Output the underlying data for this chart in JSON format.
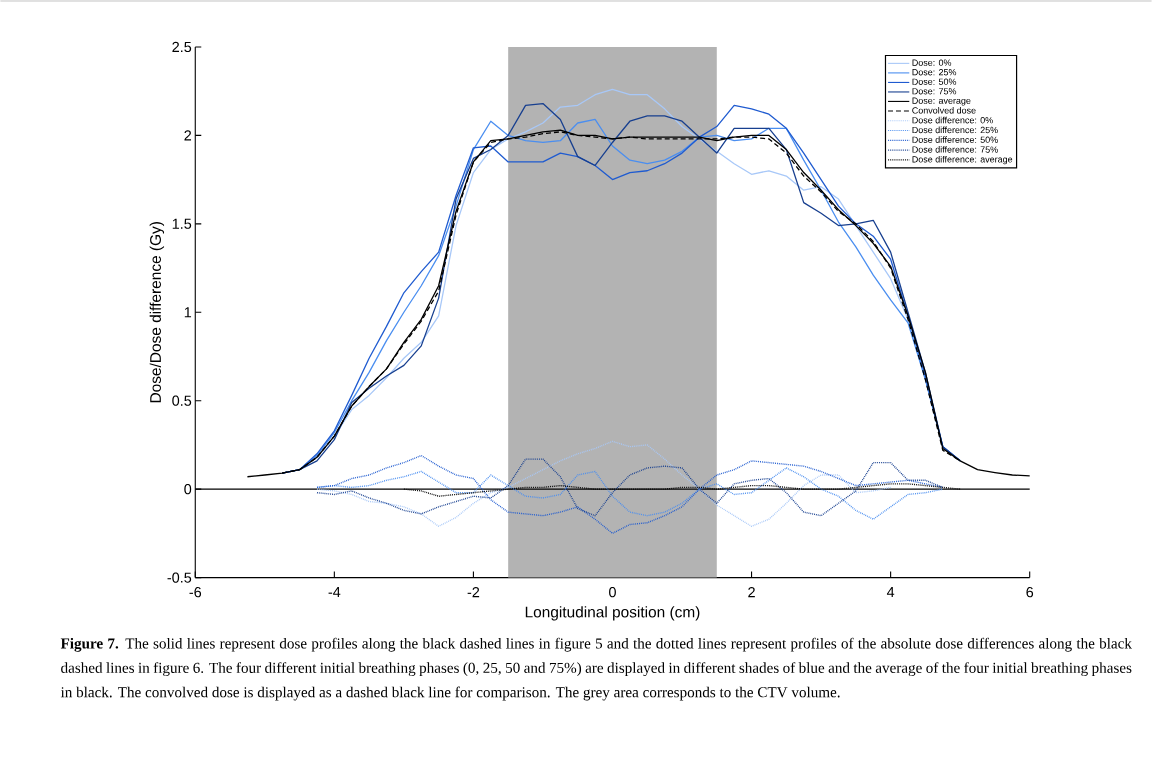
{
  "chart_data": {
    "type": "line",
    "xlabel": "Longitudinal position (cm)",
    "ylabel": "Dose/Dose difference (Gy)",
    "annotations": [
      "**Figure 7.** The solid lines represent dose profiles along the black dashed lines in figure 5 and the dotted lines represent profiles of the absolute dose differences along the black dashed lines in figure 6. The four different initial breathing phases (0, 25, 50 and 75%) are displayed in different shades of blue and the average of the four initial breathing phases in black. The convolved dose is displayed as a dashed black line for comparison. The grey area corresponds to the CTV volume."
    ],
    "x": [
      -5.25,
      -5,
      -4.75,
      -4.5,
      -4.25,
      -4,
      -3.75,
      -3.5,
      -3.25,
      -3,
      -2.75,
      -2.5,
      -2.25,
      -2,
      -1.75,
      -1.5,
      -1.25,
      -1,
      -0.75,
      -0.5,
      -0.25,
      0,
      0.25,
      0.5,
      0.75,
      1,
      1.25,
      1.5,
      1.75,
      2,
      2.25,
      2.5,
      2.75,
      3,
      3.25,
      3.5,
      3.75,
      4,
      4.25,
      4.5,
      4.75,
      5,
      5.25,
      5.5,
      5.75,
      6
    ],
    "xlim": [
      -6,
      6
    ],
    "xticks": [
      -6,
      -4,
      -2,
      0,
      2,
      4,
      6
    ],
    "ylim": [
      -0.5,
      2.5
    ],
    "yticks": [
      -0.5,
      0,
      0.5,
      1,
      1.5,
      2,
      2.5
    ],
    "grid": false,
    "legend": "top right",
    "marker": "none",
    "bands": [
      {
        "axis": "x",
        "from": -1.5,
        "to": 1.5,
        "color": "#b3b3b3"
      }
    ],
    "ref_lines": [
      {
        "axis": "y",
        "value": 0,
        "color": "#000000"
      }
    ],
    "series": [
      {
        "name": "Dose: 0%",
        "color": "#a8c8f8",
        "line_style": "solid",
        "values": [
          null,
          null,
          0.09,
          0.11,
          0.18,
          0.3,
          0.45,
          0.53,
          0.63,
          0.74,
          0.83,
          0.98,
          1.49,
          1.79,
          1.92,
          1.98,
          2.02,
          2.07,
          2.16,
          2.17,
          2.23,
          2.26,
          2.23,
          2.23,
          2.15,
          2.05,
          1.98,
          1.91,
          1.84,
          1.78,
          1.8,
          1.77,
          1.69,
          1.71,
          1.64,
          1.49,
          1.34,
          1.19,
          0.96,
          0.62,
          0.24,
          0.16,
          null,
          null,
          null,
          null
        ]
      },
      {
        "name": "Dose: 25%",
        "color": "#4a8ef0",
        "line_style": "solid",
        "values": [
          null,
          null,
          0.09,
          0.11,
          0.19,
          0.32,
          0.5,
          0.66,
          0.84,
          1.0,
          1.15,
          1.32,
          1.6,
          1.92,
          2.08,
          2.0,
          1.97,
          1.96,
          1.97,
          2.07,
          2.09,
          1.94,
          1.86,
          1.84,
          1.86,
          1.91,
          1.99,
          2.0,
          1.97,
          1.98,
          2.04,
          2.04,
          1.86,
          1.69,
          1.51,
          1.37,
          1.21,
          1.07,
          0.94,
          0.62,
          0.24,
          0.16,
          null,
          null,
          null,
          null
        ]
      },
      {
        "name": "Dose: 50%",
        "color": "#1f5bd0",
        "line_style": "solid",
        "values": [
          null,
          null,
          0.09,
          0.11,
          0.2,
          0.33,
          0.53,
          0.74,
          0.92,
          1.11,
          1.23,
          1.34,
          1.66,
          1.93,
          1.94,
          1.85,
          1.85,
          1.85,
          1.9,
          1.88,
          1.83,
          1.75,
          1.79,
          1.8,
          1.84,
          1.9,
          1.99,
          2.05,
          2.17,
          2.15,
          2.12,
          2.04,
          1.9,
          1.75,
          1.6,
          1.5,
          1.43,
          1.3,
          0.98,
          0.64,
          0.24,
          0.16,
          null,
          null,
          null,
          null
        ]
      },
      {
        "name": "Dose: 75%",
        "color": "#173f8f",
        "line_style": "solid",
        "values": [
          null,
          null,
          0.09,
          0.11,
          0.16,
          0.28,
          0.49,
          0.57,
          0.64,
          0.7,
          0.81,
          1.08,
          1.64,
          1.87,
          1.92,
          2.0,
          2.17,
          2.18,
          2.09,
          1.88,
          1.83,
          1.96,
          2.08,
          2.11,
          2.11,
          2.08,
          1.99,
          1.9,
          2.04,
          2.04,
          2.04,
          1.92,
          1.62,
          1.56,
          1.49,
          1.5,
          1.52,
          1.34,
          1.0,
          0.66,
          0.24,
          0.16,
          null,
          null,
          null,
          null
        ]
      },
      {
        "name": "Dose: average",
        "color": "#000000",
        "line_style": "solid",
        "values": [
          0.07,
          0.08,
          0.09,
          0.11,
          0.18,
          0.3,
          0.47,
          0.58,
          0.68,
          0.83,
          0.96,
          1.15,
          1.57,
          1.85,
          1.97,
          1.98,
          2.0,
          2.02,
          2.03,
          2.0,
          2.0,
          1.98,
          1.99,
          1.99,
          1.99,
          1.99,
          1.99,
          1.97,
          1.99,
          2.0,
          2.0,
          1.92,
          1.79,
          1.69,
          1.58,
          1.49,
          1.39,
          1.26,
          0.98,
          0.66,
          0.23,
          0.16,
          0.11,
          0.094,
          0.08,
          0.075
        ]
      },
      {
        "name": "Convolved dose",
        "color": "#000000",
        "line_style": "dashed",
        "values": [
          null,
          null,
          0.09,
          0.11,
          0.18,
          0.3,
          0.47,
          0.58,
          0.68,
          0.82,
          0.95,
          1.12,
          1.55,
          1.85,
          1.96,
          1.98,
          1.99,
          2.01,
          2.02,
          2.0,
          1.99,
          1.98,
          1.99,
          1.98,
          1.98,
          1.98,
          1.98,
          1.98,
          1.99,
          1.99,
          1.98,
          1.9,
          1.77,
          1.68,
          1.57,
          1.5,
          1.4,
          1.25,
          0.96,
          0.62,
          0.22,
          0.16,
          null,
          null,
          null,
          null
        ]
      },
      {
        "name": "Dose difference: 0%",
        "color": "#a8c8f8",
        "line_style": "dotted",
        "values": [
          null,
          null,
          null,
          null,
          0,
          -0.01,
          -0.03,
          -0.07,
          -0.08,
          -0.1,
          -0.14,
          -0.21,
          -0.16,
          -0.08,
          -0.02,
          0.01,
          0.06,
          0.11,
          0.16,
          0.2,
          0.23,
          0.27,
          0.24,
          0.25,
          0.17,
          0.08,
          0,
          -0.09,
          -0.15,
          -0.21,
          -0.17,
          -0.08,
          0.02,
          0.08,
          0.08,
          -0.02,
          -0.01,
          0.01,
          null,
          null,
          null,
          null,
          null,
          null,
          null,
          null
        ]
      },
      {
        "name": "Dose difference: 25%",
        "color": "#4a8ef0",
        "line_style": "dotted",
        "values": [
          null,
          null,
          null,
          null,
          0.01,
          0.02,
          0.01,
          0.02,
          0.05,
          0.07,
          0.1,
          0.04,
          -0.02,
          -0.02,
          0.08,
          0.02,
          -0.04,
          -0.05,
          -0.03,
          0.08,
          0.1,
          -0.04,
          -0.13,
          -0.15,
          -0.13,
          -0.08,
          0,
          0.03,
          -0.03,
          -0.02,
          0.05,
          0.12,
          0.07,
          0,
          -0.04,
          -0.12,
          -0.17,
          -0.1,
          -0.03,
          -0.02,
          0,
          null,
          null,
          null,
          null,
          null
        ]
      },
      {
        "name": "Dose difference: 50%",
        "color": "#1f5bd0",
        "line_style": "dotted",
        "values": [
          null,
          null,
          null,
          null,
          0.01,
          0.02,
          0.06,
          0.08,
          0.12,
          0.15,
          0.19,
          0.13,
          0.08,
          0.06,
          -0.06,
          -0.13,
          -0.14,
          -0.15,
          -0.13,
          -0.1,
          -0.17,
          -0.25,
          -0.2,
          -0.19,
          -0.15,
          -0.1,
          0,
          0.08,
          0.11,
          0.16,
          0.15,
          0.14,
          0.13,
          0.1,
          0.06,
          0.02,
          0.03,
          0.04,
          0.05,
          0.03,
          0.01,
          null,
          null,
          null,
          null,
          null
        ]
      },
      {
        "name": "Dose difference: 75%",
        "color": "#173f8f",
        "line_style": "dotted",
        "values": [
          null,
          null,
          null,
          null,
          -0.02,
          -0.03,
          -0.01,
          -0.05,
          -0.08,
          -0.12,
          -0.14,
          -0.1,
          -0.07,
          -0.04,
          -0.05,
          0.02,
          0.17,
          0.17,
          0.07,
          -0.11,
          -0.15,
          -0.02,
          0.08,
          0.12,
          0.13,
          0.12,
          0,
          -0.08,
          0.03,
          0.05,
          0.06,
          -0.02,
          -0.13,
          -0.15,
          -0.08,
          -0.01,
          0.15,
          0.15,
          0.05,
          0.05,
          0.01,
          null,
          null,
          null,
          null,
          null
        ]
      },
      {
        "name": "Dose difference: average",
        "color": "#000000",
        "line_style": "dotted",
        "values": [
          null,
          null,
          null,
          null,
          null,
          null,
          null,
          null,
          null,
          0,
          -0.01,
          -0.04,
          -0.03,
          -0.02,
          -0.01,
          0,
          0.01,
          0.01,
          0.02,
          0.01,
          0,
          0,
          0,
          0,
          0,
          0.01,
          0.01,
          0,
          0.01,
          0.02,
          0.02,
          0.01,
          0,
          0,
          0,
          0.01,
          0.02,
          0.03,
          0.03,
          0.02,
          0.01,
          0,
          null,
          null,
          null,
          null
        ]
      }
    ]
  }
}
